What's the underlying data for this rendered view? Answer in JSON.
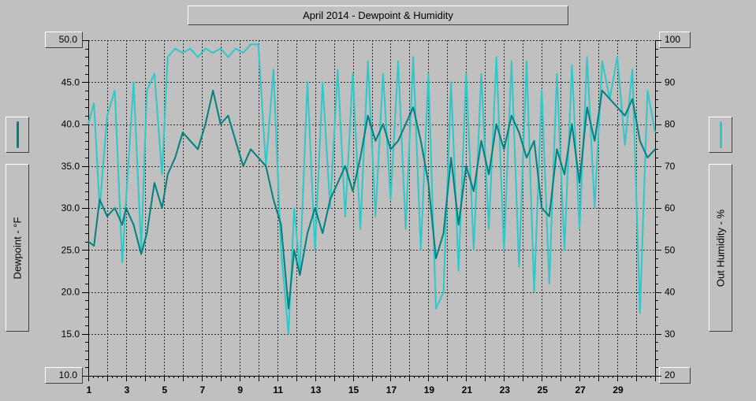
{
  "chart_data": {
    "type": "line",
    "title": "April 2014 - Dewpoint & Humidity",
    "left_axis": {
      "label": "Dewpoint - °F",
      "min": 10,
      "max": 50,
      "ticks": [
        "50.0",
        "45.0",
        "40.0",
        "35.0",
        "30.0",
        "25.0",
        "20.0",
        "15.0",
        "10.0"
      ]
    },
    "right_axis": {
      "label": "Out Humidity - %",
      "min": 20,
      "max": 100,
      "ticks": [
        "100",
        "90",
        "80",
        "70",
        "60",
        "50",
        "40",
        "30",
        "20"
      ]
    },
    "x_axis": {
      "min": 1,
      "max": 31,
      "tick_labels": [
        "1",
        "3",
        "5",
        "7",
        "9",
        "11",
        "13",
        "15",
        "17",
        "19",
        "21",
        "23",
        "25",
        "27",
        "29"
      ]
    },
    "grid": true,
    "series": [
      {
        "name": "Dewpoint",
        "axis": "left",
        "color": "#008080",
        "x": [
          1.0,
          1.3,
          1.6,
          2.0,
          2.4,
          2.8,
          3.0,
          3.4,
          3.8,
          4.1,
          4.5,
          4.9,
          5.2,
          5.6,
          6.0,
          6.4,
          6.8,
          7.2,
          7.6,
          8.0,
          8.4,
          8.8,
          9.2,
          9.6,
          10.0,
          10.4,
          10.8,
          11.2,
          11.6,
          11.9,
          12.2,
          12.6,
          13.0,
          13.4,
          13.8,
          14.2,
          14.6,
          15.0,
          15.4,
          15.8,
          16.2,
          16.6,
          17.0,
          17.4,
          17.8,
          18.2,
          18.6,
          19.0,
          19.4,
          19.8,
          20.2,
          20.6,
          21.0,
          21.4,
          21.8,
          22.2,
          22.6,
          23.0,
          23.4,
          23.8,
          24.2,
          24.6,
          25.0,
          25.4,
          25.8,
          26.2,
          26.6,
          27.0,
          27.4,
          27.8,
          28.2,
          28.6,
          29.0,
          29.4,
          29.8,
          30.2,
          30.6,
          31.0
        ],
        "values": [
          26,
          25.5,
          31,
          29,
          30,
          28,
          30,
          28,
          24.5,
          27,
          33,
          30,
          34,
          36,
          39,
          38,
          37,
          40,
          44,
          40,
          41,
          38,
          35,
          37,
          36,
          35,
          31,
          28,
          18,
          25,
          22,
          27,
          30,
          27,
          31,
          33,
          35,
          32,
          36,
          41,
          38,
          40,
          37,
          38,
          40,
          42,
          38,
          33,
          24,
          27,
          36,
          28,
          35,
          32,
          38,
          34,
          40,
          37,
          41,
          39,
          36,
          38,
          30,
          29,
          37,
          34,
          40,
          33,
          42,
          38,
          44,
          43,
          42,
          41,
          43,
          38,
          36,
          37
        ]
      },
      {
        "name": "Out Humidity",
        "axis": "right",
        "color": "#2fc8c8",
        "x": [
          1.0,
          1.3,
          1.6,
          2.0,
          2.4,
          2.8,
          3.0,
          3.4,
          3.8,
          4.1,
          4.5,
          4.9,
          5.2,
          5.6,
          6.0,
          6.4,
          6.8,
          7.2,
          7.6,
          8.0,
          8.4,
          8.8,
          9.2,
          9.6,
          10.0,
          10.4,
          10.8,
          11.2,
          11.6,
          11.9,
          12.2,
          12.6,
          13.0,
          13.4,
          13.8,
          14.2,
          14.6,
          15.0,
          15.4,
          15.8,
          16.2,
          16.6,
          17.0,
          17.4,
          17.8,
          18.2,
          18.6,
          19.0,
          19.4,
          19.8,
          20.2,
          20.6,
          21.0,
          21.4,
          21.8,
          22.2,
          22.6,
          23.0,
          23.4,
          23.8,
          24.2,
          24.6,
          25.0,
          25.4,
          25.8,
          26.2,
          26.6,
          27.0,
          27.4,
          27.8,
          28.2,
          28.6,
          29.0,
          29.4,
          29.8,
          30.2,
          30.6,
          31.0
        ],
        "values": [
          80,
          85,
          60,
          82,
          88,
          47,
          62,
          90,
          50,
          88,
          92,
          68,
          96,
          98,
          97,
          98,
          96,
          98,
          97,
          98,
          96,
          98,
          97,
          99,
          99,
          70,
          93,
          50,
          30,
          60,
          45,
          90,
          50,
          90,
          60,
          93,
          58,
          92,
          55,
          95,
          58,
          92,
          62,
          95,
          55,
          96,
          50,
          92,
          36,
          40,
          90,
          45,
          92,
          50,
          92,
          55,
          96,
          50,
          95,
          46,
          95,
          40,
          88,
          42,
          92,
          50,
          94,
          55,
          96,
          60,
          95,
          86,
          96,
          75,
          93,
          35,
          88,
          78
        ]
      }
    ]
  }
}
